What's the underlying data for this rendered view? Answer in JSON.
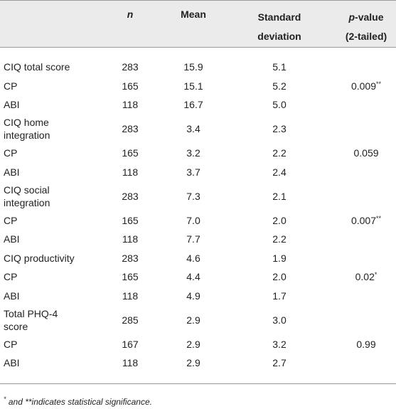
{
  "header": {
    "n": "n",
    "mean": "Mean",
    "sd": [
      "Standard",
      "deviation"
    ],
    "p_italic": "p",
    "p_rest": "-value",
    "p_line2": "(2-tailed)"
  },
  "rows": [
    {
      "label": [
        "CIQ total score"
      ],
      "n": "283",
      "mean": "15.9",
      "sd": "5.1"
    },
    {
      "label": [
        "CP"
      ],
      "n": "165",
      "mean": "15.1",
      "sd": "5.2",
      "p": "0.009",
      "p_mark": "**"
    },
    {
      "label": [
        "ABI"
      ],
      "n": "118",
      "mean": "16.7",
      "sd": "5.0"
    },
    {
      "label": [
        "CIQ home",
        "integration"
      ],
      "n": "283",
      "mean": "3.4",
      "sd": "2.3"
    },
    {
      "label": [
        "CP"
      ],
      "n": "165",
      "mean": "3.2",
      "sd": "2.2",
      "p": "0.059"
    },
    {
      "label": [
        "ABI"
      ],
      "n": "118",
      "mean": "3.7",
      "sd": "2.4"
    },
    {
      "label": [
        "CIQ social",
        "integration"
      ],
      "n": "283",
      "mean": "7.3",
      "sd": "2.1"
    },
    {
      "label": [
        "CP"
      ],
      "n": "165",
      "mean": "7.0",
      "sd": "2.0",
      "p": "0.007",
      "p_mark": "**"
    },
    {
      "label": [
        "ABI"
      ],
      "n": "118",
      "mean": "7.7",
      "sd": "2.2"
    },
    {
      "label": [
        "CIQ productivity"
      ],
      "n": "283",
      "mean": "4.6",
      "sd": "1.9"
    },
    {
      "label": [
        "CP"
      ],
      "n": "165",
      "mean": "4.4",
      "sd": "2.0",
      "p": "0.02",
      "p_mark": "*"
    },
    {
      "label": [
        "ABI"
      ],
      "n": "118",
      "mean": "4.9",
      "sd": "1.7"
    },
    {
      "label": [
        "Total PHQ-4",
        "score"
      ],
      "n": "285",
      "mean": "2.9",
      "sd": "3.0"
    },
    {
      "label": [
        "CP"
      ],
      "n": "167",
      "mean": "2.9",
      "sd": "3.2",
      "p": "0.99"
    },
    {
      "label": [
        "ABI"
      ],
      "n": "118",
      "mean": "2.9",
      "sd": "2.7"
    }
  ],
  "footnote": {
    "mark": "*",
    "text": " and **indicates statistical significance."
  }
}
